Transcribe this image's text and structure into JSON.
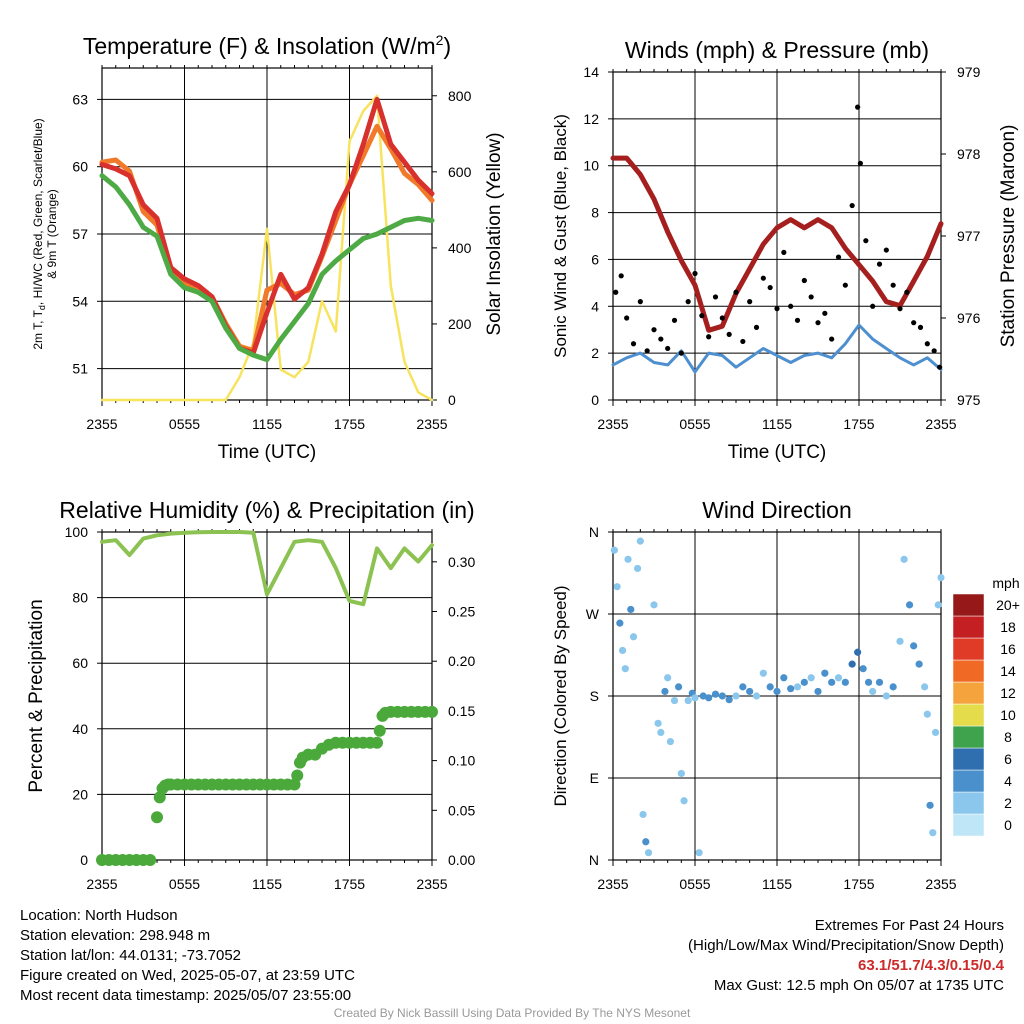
{
  "chart_data": [
    {
      "id": "temp",
      "type": "line",
      "title": "Temperature (F) & Insolation (W/m²)",
      "xlabel": "Time (UTC)",
      "ylabel": "2m T, Td, HI/WC (Red, Green, Scarlet/Blue) & 9m T (Orange)",
      "ylabel_line1": "2m T, T",
      "ylabel_sub": "d",
      "ylabel_line1b": ", HI/WC (Red, Green, Scarlet/Blue)",
      "ylabel_line2": "& 9m T (Orange)",
      "y2label": "Solar Insolation (Yellow)",
      "x_ticks": [
        "2355",
        "0555",
        "1155",
        "1755",
        "2355"
      ],
      "y_ticks": [
        51,
        54,
        57,
        60,
        63
      ],
      "y2_ticks": [
        0,
        200,
        400,
        600,
        800
      ],
      "ylim": [
        49.6,
        64.4
      ],
      "y2lim": [
        0,
        873
      ],
      "x": [
        0,
        1,
        2,
        3,
        4,
        5,
        6,
        7,
        8,
        9,
        10,
        11,
        12,
        13,
        14,
        15,
        16,
        17,
        18,
        19,
        20,
        21,
        22,
        23,
        24
      ],
      "series": [
        {
          "name": "Solar Insolation",
          "axis": "right",
          "color": "#f7e35e",
          "values": [
            0,
            0,
            0,
            0,
            0,
            0,
            0,
            0,
            0,
            0,
            60,
            150,
            450,
            80,
            60,
            100,
            260,
            180,
            680,
            760,
            800,
            300,
            100,
            20,
            0
          ]
        },
        {
          "name": "9m T",
          "axis": "left",
          "color": "#f07a2a",
          "values": [
            60.2,
            60.3,
            59.8,
            58.0,
            57.4,
            55.3,
            54.8,
            54.5,
            54.2,
            53.0,
            52.0,
            51.8,
            54.5,
            54.8,
            54.3,
            54.5,
            56.0,
            57.6,
            59.2,
            60.5,
            61.8,
            60.8,
            59.7,
            59.2,
            58.5
          ]
        },
        {
          "name": "2m T",
          "axis": "left",
          "color": "#d8302c",
          "values": [
            60.1,
            59.9,
            59.6,
            58.3,
            57.7,
            55.5,
            55.0,
            54.7,
            54.2,
            52.9,
            51.9,
            51.7,
            53.5,
            55.2,
            54.1,
            54.6,
            56.1,
            58.0,
            59.2,
            61.0,
            63.0,
            61.0,
            60.2,
            59.4,
            58.8
          ]
        },
        {
          "name": "Td",
          "axis": "left",
          "color": "#4daa44",
          "values": [
            59.6,
            59.1,
            58.3,
            57.3,
            56.9,
            55.2,
            54.6,
            54.4,
            54.0,
            52.8,
            51.9,
            51.6,
            51.4,
            52.3,
            53.1,
            53.9,
            55.2,
            55.8,
            56.3,
            56.8,
            57.0,
            57.3,
            57.6,
            57.7,
            57.6
          ]
        }
      ]
    },
    {
      "id": "wind",
      "type": "line",
      "title": "Winds (mph) & Pressure (mb)",
      "xlabel": "Time (UTC)",
      "ylabel": "Sonic Wind & Gust (Blue, Black)",
      "y2label": "Station Pressure (Maroon)",
      "x_ticks": [
        "2355",
        "0555",
        "1155",
        "1755",
        "2355"
      ],
      "y_ticks": [
        0,
        2,
        4,
        6,
        8,
        10,
        12,
        14
      ],
      "y2_ticks": [
        975,
        976,
        977,
        978,
        979
      ],
      "ylim": [
        0,
        14
      ],
      "y2lim": [
        975,
        979
      ],
      "x": [
        0,
        1,
        2,
        3,
        4,
        5,
        6,
        7,
        8,
        9,
        10,
        11,
        12,
        13,
        14,
        15,
        16,
        17,
        18,
        19,
        20,
        21,
        22,
        23,
        24
      ],
      "series": [
        {
          "name": "Station Pressure",
          "axis": "right",
          "color": "#a51f1f",
          "values": [
            977.95,
            977.95,
            977.75,
            977.45,
            977.05,
            976.7,
            976.4,
            975.85,
            975.9,
            976.3,
            976.6,
            976.9,
            977.1,
            977.2,
            977.1,
            977.2,
            977.1,
            976.85,
            976.65,
            976.45,
            976.2,
            976.15,
            976.45,
            976.75,
            977.15
          ]
        },
        {
          "name": "Sonic Wind",
          "axis": "left",
          "color": "#4d8fcf",
          "values": [
            1.5,
            1.8,
            2.0,
            1.6,
            1.5,
            2.1,
            1.2,
            2.0,
            1.9,
            1.4,
            1.8,
            2.2,
            1.9,
            1.6,
            1.9,
            2.0,
            1.8,
            2.4,
            3.2,
            2.6,
            2.2,
            1.8,
            1.5,
            1.8,
            1.3
          ]
        },
        {
          "name": "Gust",
          "axis": "left",
          "type": "scatter",
          "color": "#000000",
          "x": [
            0.2,
            0.6,
            1.0,
            1.5,
            2.0,
            2.5,
            3.0,
            3.5,
            4.0,
            4.5,
            5.0,
            5.5,
            6.0,
            6.5,
            7.0,
            7.5,
            8.0,
            8.5,
            9.0,
            9.5,
            10.0,
            10.5,
            11.0,
            11.5,
            12.0,
            12.5,
            13.0,
            13.5,
            14.0,
            14.5,
            15.0,
            15.5,
            16.0,
            16.5,
            17.0,
            17.5,
            17.9,
            18.1,
            18.5,
            19.0,
            19.5,
            20.0,
            20.5,
            21.0,
            21.5,
            22.0,
            22.5,
            23.0,
            23.5,
            23.9
          ],
          "values": [
            4.6,
            5.3,
            3.5,
            2.4,
            4.2,
            2.1,
            3.0,
            2.6,
            2.2,
            3.4,
            2.0,
            4.2,
            5.4,
            3.6,
            2.7,
            4.4,
            3.5,
            2.8,
            4.6,
            2.5,
            4.2,
            3.1,
            5.2,
            4.8,
            3.9,
            6.3,
            4.0,
            3.4,
            5.1,
            4.4,
            3.3,
            3.7,
            2.6,
            6.1,
            4.9,
            8.3,
            12.5,
            10.1,
            6.8,
            4.0,
            5.8,
            6.4,
            4.9,
            3.9,
            4.6,
            3.3,
            3.1,
            2.4,
            2.1,
            1.4
          ]
        }
      ]
    },
    {
      "id": "rh",
      "type": "line",
      "title": "Relative Humidity (%) & Precipitation (in)",
      "ylabel": "Percent & Precipitation",
      "x_ticks": [
        "2355",
        "0555",
        "1155",
        "1755",
        "2355"
      ],
      "y_ticks": [
        0,
        20,
        40,
        60,
        80,
        100
      ],
      "y2_ticks": [
        "0.00",
        "0.05",
        "0.10",
        "0.15",
        "0.20",
        "0.25",
        "0.30"
      ],
      "ylim": [
        0,
        100
      ],
      "y2lim": [
        0,
        0.33
      ],
      "x": [
        0,
        1,
        2,
        3,
        4,
        5,
        6,
        7,
        8,
        9,
        10,
        11,
        12,
        13,
        14,
        15,
        16,
        17,
        18,
        19,
        20,
        21,
        22,
        23,
        24
      ],
      "series": [
        {
          "name": "Relative Humidity",
          "axis": "left",
          "color": "#8cc251",
          "values": [
            97,
            97.5,
            93,
            98,
            99,
            99.5,
            99.8,
            99.9,
            100,
            100,
            100,
            99.8,
            81,
            89,
            97,
            97.5,
            97,
            89,
            79,
            78,
            95,
            89,
            95,
            91,
            96
          ]
        },
        {
          "name": "Precipitation",
          "axis": "right",
          "type": "scatter",
          "color": "#4aa93a",
          "x": [
            0,
            0.5,
            1,
            1.5,
            2,
            2.5,
            3,
            3.5,
            4,
            4.2,
            4.4,
            4.6,
            4.8,
            5,
            5.5,
            6,
            6.5,
            7,
            7.5,
            8,
            8.5,
            9,
            9.5,
            10,
            10.5,
            11,
            11.5,
            12,
            12.5,
            13,
            13.5,
            14,
            14.2,
            14.4,
            14.6,
            15,
            15.5,
            16,
            16.5,
            17,
            17.5,
            18,
            18.5,
            19,
            19.5,
            20,
            20.2,
            20.4,
            20.6,
            21,
            21.5,
            22,
            22.5,
            23,
            23.5,
            24
          ],
          "values": [
            0,
            0,
            0,
            0,
            0,
            0,
            0,
            0,
            0.043,
            0.063,
            0.072,
            0.075,
            0.076,
            0.076,
            0.076,
            0.076,
            0.076,
            0.076,
            0.076,
            0.076,
            0.076,
            0.076,
            0.076,
            0.076,
            0.076,
            0.076,
            0.076,
            0.076,
            0.076,
            0.076,
            0.076,
            0.076,
            0.085,
            0.098,
            0.103,
            0.106,
            0.106,
            0.112,
            0.116,
            0.118,
            0.118,
            0.118,
            0.118,
            0.118,
            0.118,
            0.118,
            0.13,
            0.145,
            0.148,
            0.149,
            0.149,
            0.149,
            0.149,
            0.149,
            0.149,
            0.149
          ]
        }
      ]
    },
    {
      "id": "wdir",
      "type": "scatter",
      "title": "Wind Direction",
      "ylabel": "Direction (Colored By Speed)",
      "x_ticks": [
        "2355",
        "0555",
        "1155",
        "1755",
        "2355"
      ],
      "y_ticks": [
        "N",
        "E",
        "S",
        "W",
        "N"
      ],
      "ylim": [
        0,
        360
      ],
      "legend": {
        "title": "mph",
        "labels": [
          "0",
          "2",
          "4",
          "6",
          "8",
          "10",
          "12",
          "14",
          "16",
          "18",
          "20+"
        ],
        "colors": [
          "#bfe6f7",
          "#8bc7ec",
          "#4a90cc",
          "#2f6fb0",
          "#3fa34d",
          "#e4dc4b",
          "#f5a33d",
          "#f06a26",
          "#df3b26",
          "#c41f22",
          "#961818"
        ]
      },
      "points": [
        [
          0.1,
          340,
          1
        ],
        [
          0.3,
          300,
          1
        ],
        [
          0.5,
          260,
          2
        ],
        [
          0.7,
          230,
          1
        ],
        [
          0.9,
          210,
          1
        ],
        [
          1.1,
          330,
          1
        ],
        [
          1.3,
          275,
          2
        ],
        [
          1.5,
          245,
          1
        ],
        [
          1.8,
          320,
          1
        ],
        [
          2.0,
          350,
          1
        ],
        [
          2.2,
          50,
          1
        ],
        [
          2.4,
          20,
          2
        ],
        [
          2.6,
          8,
          1
        ],
        [
          3.0,
          280,
          1
        ],
        [
          3.3,
          150,
          1
        ],
        [
          3.5,
          140,
          1
        ],
        [
          3.8,
          185,
          2
        ],
        [
          4.0,
          200,
          1
        ],
        [
          4.2,
          130,
          1
        ],
        [
          4.5,
          175,
          1
        ],
        [
          4.8,
          190,
          2
        ],
        [
          5.0,
          95,
          1
        ],
        [
          5.2,
          65,
          1
        ],
        [
          5.5,
          175,
          1
        ],
        [
          5.8,
          183,
          2
        ],
        [
          6.0,
          178,
          1
        ],
        [
          6.3,
          8,
          1
        ],
        [
          6.6,
          180,
          2
        ],
        [
          7.0,
          178,
          2
        ],
        [
          7.5,
          182,
          2
        ],
        [
          8.0,
          180,
          2
        ],
        [
          8.5,
          176,
          2
        ],
        [
          9.0,
          180,
          1
        ],
        [
          9.5,
          190,
          2
        ],
        [
          10.0,
          185,
          2
        ],
        [
          10.5,
          180,
          1
        ],
        [
          11.0,
          205,
          1
        ],
        [
          11.5,
          190,
          2
        ],
        [
          12.0,
          185,
          2
        ],
        [
          12.5,
          200,
          2
        ],
        [
          13.0,
          188,
          2
        ],
        [
          13.5,
          190,
          1
        ],
        [
          14.0,
          195,
          2
        ],
        [
          14.5,
          200,
          1
        ],
        [
          15.0,
          185,
          2
        ],
        [
          15.5,
          205,
          2
        ],
        [
          16.0,
          195,
          2
        ],
        [
          16.5,
          200,
          1
        ],
        [
          17.0,
          195,
          2
        ],
        [
          17.5,
          215,
          3
        ],
        [
          17.9,
          228,
          3
        ],
        [
          18.3,
          210,
          2
        ],
        [
          18.7,
          195,
          2
        ],
        [
          19.0,
          185,
          1
        ],
        [
          19.5,
          195,
          2
        ],
        [
          20.0,
          180,
          1
        ],
        [
          20.5,
          190,
          2
        ],
        [
          21.0,
          240,
          1
        ],
        [
          21.3,
          330,
          1
        ],
        [
          21.7,
          280,
          2
        ],
        [
          22.0,
          235,
          2
        ],
        [
          22.4,
          215,
          2
        ],
        [
          22.8,
          190,
          1
        ],
        [
          23.0,
          160,
          1
        ],
        [
          23.2,
          60,
          2
        ],
        [
          23.4,
          30,
          1
        ],
        [
          23.6,
          140,
          1
        ],
        [
          23.8,
          280,
          1
        ],
        [
          24.0,
          310,
          1
        ]
      ]
    }
  ],
  "info": {
    "location": "Location: North Hudson",
    "elevation": "Station elevation: 298.948 m",
    "latlon": "Station lat/lon: 44.0131; -73.7052",
    "created": "Figure created on Wed, 2025-05-07, at 23:59 UTC",
    "latest": "Most recent data timestamp: 2025/05/07 23:55:00"
  },
  "extremes": {
    "title": "Extremes For Past 24 Hours",
    "subtitle": "(High/Low/Max Wind/Precipitation/Snow Depth)",
    "values": "63.1/51.7/4.3/0.15/0.4",
    "gust": "Max Gust: 12.5 mph On 05/07 at 1735 UTC"
  },
  "credit": "Created By Nick Bassill Using Data Provided By The NYS Mesonet"
}
